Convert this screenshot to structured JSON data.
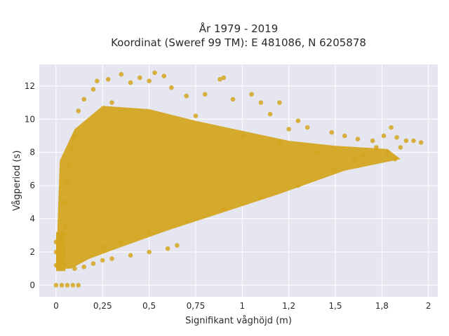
{
  "chart_data": {
    "type": "scatter",
    "title_line1": "År 1979 - 2019",
    "title_line2": "Koordinat (Sweref 99 TM): E 481086, N 6205878",
    "xlabel": "Signifikant våghöjd (m)",
    "ylabel": "Vågperiod (s)",
    "xlim": [
      -0.09,
      2.05
    ],
    "ylim": [
      -0.7,
      13.3
    ],
    "x_ticks": [
      {
        "value": 0,
        "label": "0"
      },
      {
        "value": 0.25,
        "label": "0,25"
      },
      {
        "value": 0.5,
        "label": "0,5"
      },
      {
        "value": 0.75,
        "label": "0,75"
      },
      {
        "value": 1,
        "label": "1"
      },
      {
        "value": 1.25,
        "label": "1,2"
      },
      {
        "value": 1.5,
        "label": "1,5"
      },
      {
        "value": 1.75,
        "label": "1,8"
      },
      {
        "value": 2,
        "label": "2"
      }
    ],
    "y_ticks": [
      {
        "value": 0,
        "label": "0"
      },
      {
        "value": 2,
        "label": "2"
      },
      {
        "value": 4,
        "label": "4"
      },
      {
        "value": 6,
        "label": "6"
      },
      {
        "value": 8,
        "label": "8"
      },
      {
        "value": 10,
        "label": "10"
      },
      {
        "value": 12,
        "label": "12"
      }
    ],
    "grid": true,
    "colors": {
      "marker": "#d4a520",
      "plot_bg": "#e5e6ef",
      "grid": "#ffffff"
    },
    "series": [
      {
        "points": [
          [
            0.0,
            0.0
          ],
          [
            0.03,
            0.0
          ],
          [
            0.06,
            0.0
          ],
          [
            0.09,
            0.0
          ],
          [
            0.12,
            0.0
          ],
          [
            0.0,
            1.2
          ],
          [
            0.0,
            2.0
          ],
          [
            0.0,
            2.6
          ],
          [
            0.02,
            3.0
          ],
          [
            0.03,
            1.1
          ],
          [
            0.05,
            3.5
          ],
          [
            0.05,
            5.0
          ],
          [
            0.06,
            6.2
          ],
          [
            0.07,
            7.2
          ],
          [
            0.08,
            8.2
          ],
          [
            0.1,
            9.0
          ],
          [
            0.1,
            1.0
          ],
          [
            0.15,
            1.1
          ],
          [
            0.2,
            1.3
          ],
          [
            0.25,
            1.5
          ],
          [
            0.3,
            1.6
          ],
          [
            0.4,
            1.8
          ],
          [
            0.5,
            2.0
          ],
          [
            0.6,
            2.2
          ],
          [
            0.65,
            2.4
          ],
          [
            0.12,
            10.5
          ],
          [
            0.15,
            11.2
          ],
          [
            0.2,
            11.8
          ],
          [
            0.22,
            12.3
          ],
          [
            0.28,
            12.4
          ],
          [
            0.35,
            12.7
          ],
          [
            0.4,
            12.2
          ],
          [
            0.45,
            12.5
          ],
          [
            0.5,
            12.3
          ],
          [
            0.53,
            12.8
          ],
          [
            0.58,
            12.6
          ],
          [
            0.62,
            11.9
          ],
          [
            0.7,
            11.4
          ],
          [
            0.8,
            11.5
          ],
          [
            0.88,
            12.4
          ],
          [
            0.9,
            12.5
          ],
          [
            0.95,
            11.2
          ],
          [
            1.05,
            11.5
          ],
          [
            1.1,
            11.0
          ],
          [
            1.2,
            11.0
          ],
          [
            1.15,
            10.3
          ],
          [
            1.3,
            9.9
          ],
          [
            1.25,
            9.4
          ],
          [
            1.35,
            9.5
          ],
          [
            1.48,
            9.2
          ],
          [
            1.55,
            9.0
          ],
          [
            1.62,
            8.8
          ],
          [
            1.7,
            8.7
          ],
          [
            1.76,
            9.0
          ],
          [
            1.8,
            9.5
          ],
          [
            1.83,
            8.9
          ],
          [
            1.88,
            8.7
          ],
          [
            1.92,
            8.7
          ],
          [
            1.96,
            8.6
          ],
          [
            1.85,
            8.3
          ],
          [
            1.72,
            8.3
          ],
          [
            1.65,
            7.8
          ],
          [
            1.6,
            7.5
          ],
          [
            1.5,
            7.0
          ],
          [
            1.3,
            6.0
          ],
          [
            1.1,
            5.3
          ],
          [
            0.9,
            4.6
          ],
          [
            0.7,
            3.9
          ],
          [
            0.5,
            3.2
          ],
          [
            0.35,
            2.6
          ],
          [
            0.25,
            2.3
          ],
          [
            0.15,
            2.0
          ],
          [
            1.78,
            8.0
          ],
          [
            1.82,
            7.6
          ],
          [
            1.4,
            8.0
          ],
          [
            1.2,
            8.6
          ],
          [
            1.0,
            9.0
          ],
          [
            0.75,
            10.2
          ],
          [
            0.3,
            11.0
          ],
          [
            0.18,
            9.4
          ]
        ]
      }
    ]
  }
}
